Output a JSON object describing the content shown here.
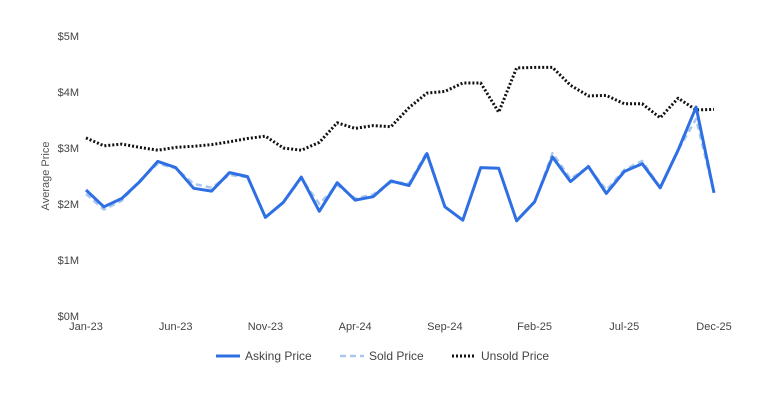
{
  "chart_data": {
    "type": "line",
    "ylabel": "Average Price",
    "ylim": [
      0,
      5000000
    ],
    "yticks": [
      {
        "value": 0,
        "label": "$0M"
      },
      {
        "value": 1000000,
        "label": "$1M"
      },
      {
        "value": 2000000,
        "label": "$2M"
      },
      {
        "value": 3000000,
        "label": "$3M"
      },
      {
        "value": 4000000,
        "label": "$4M"
      },
      {
        "value": 5000000,
        "label": "$5M"
      }
    ],
    "x": [
      "2023-01",
      "2023-02",
      "2023-03",
      "2023-04",
      "2023-05",
      "2023-06",
      "2023-07",
      "2023-08",
      "2023-09",
      "2023-10",
      "2023-11",
      "2023-12",
      "2024-01",
      "2024-02",
      "2024-03",
      "2024-04",
      "2024-05",
      "2024-06",
      "2024-07",
      "2024-08",
      "2024-09",
      "2024-10",
      "2024-11",
      "2024-12",
      "2025-01",
      "2025-02",
      "2025-03",
      "2025-04",
      "2025-05",
      "2025-06",
      "2025-07",
      "2025-08",
      "2025-09",
      "2025-10",
      "2025-11",
      "2025-12"
    ],
    "xticks": [
      {
        "x": "2023-01",
        "label": "Jan-23"
      },
      {
        "x": "2023-06",
        "label": "Jun-23"
      },
      {
        "x": "2023-11",
        "label": "Nov-23"
      },
      {
        "x": "2024-04",
        "label": "Apr-24"
      },
      {
        "x": "2024-09",
        "label": "Sep-24"
      },
      {
        "x": "2025-02",
        "label": "Feb-25"
      },
      {
        "x": "2025-07",
        "label": "Jul-25"
      },
      {
        "x": "2025-12",
        "label": "Dec-25"
      }
    ],
    "grid": false,
    "legend_position": "bottom",
    "series": [
      {
        "name": "Asking Price",
        "color": "#2f6fe4",
        "style": "solid",
        "values": [
          2250000,
          1950000,
          2100000,
          2400000,
          2760000,
          2650000,
          2280000,
          2230000,
          2560000,
          2490000,
          1760000,
          2030000,
          2480000,
          1870000,
          2380000,
          2070000,
          2130000,
          2410000,
          2330000,
          2900000,
          1950000,
          1710000,
          2650000,
          2640000,
          1700000,
          2040000,
          2840000,
          2400000,
          2670000,
          2190000,
          2580000,
          2720000,
          2290000,
          2960000,
          3730000,
          2200000
        ]
      },
      {
        "name": "Sold Price",
        "color": "#a8c7ee",
        "style": "dashed",
        "values": [
          2180000,
          1900000,
          2060000,
          2420000,
          2720000,
          2640000,
          2360000,
          2290000,
          2520000,
          2480000,
          1760000,
          2030000,
          2460000,
          2000000,
          2340000,
          2100000,
          2170000,
          2390000,
          2370000,
          2930000,
          1950000,
          1710000,
          2650000,
          2640000,
          1700000,
          2030000,
          2910000,
          2450000,
          2660000,
          2250000,
          2610000,
          2770000,
          2290000,
          2960000,
          3520000,
          2200000
        ]
      },
      {
        "name": "Unsold Price",
        "color": "#111111",
        "style": "dotted",
        "values": [
          3180000,
          3040000,
          3070000,
          3010000,
          2960000,
          3010000,
          3030000,
          3060000,
          3110000,
          3170000,
          3210000,
          3000000,
          2960000,
          3100000,
          3450000,
          3350000,
          3400000,
          3380000,
          3720000,
          3980000,
          4010000,
          4160000,
          4160000,
          3640000,
          4430000,
          4440000,
          4440000,
          4120000,
          3930000,
          3940000,
          3790000,
          3790000,
          3540000,
          3890000,
          3680000,
          3690000
        ]
      }
    ]
  }
}
